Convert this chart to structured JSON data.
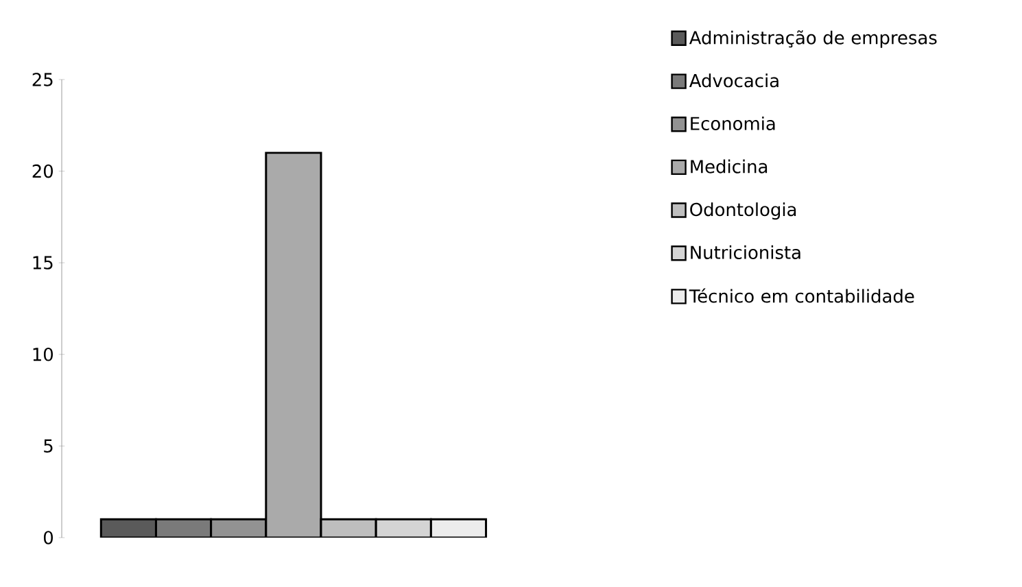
{
  "chart_data": {
    "type": "bar",
    "categories": [
      null
    ],
    "series": [
      {
        "name": "Administração de empresas",
        "color": "#5a5a5a",
        "values": [
          1
        ]
      },
      {
        "name": "Advocacia",
        "color": "#7a7a7a",
        "values": [
          1
        ]
      },
      {
        "name": "Economia",
        "color": "#929292",
        "values": [
          1
        ]
      },
      {
        "name": "Medicina",
        "color": "#aaaaaa",
        "values": [
          21
        ]
      },
      {
        "name": "Odontologia",
        "color": "#bebebe",
        "values": [
          1
        ]
      },
      {
        "name": "Nutricionista",
        "color": "#d4d4d4",
        "values": [
          1
        ]
      },
      {
        "name": "Técnico  em contabilidade",
        "color": "#ececec",
        "values": [
          1
        ]
      }
    ],
    "ylim": [
      0,
      25
    ],
    "yticks": [
      0,
      5,
      10,
      15,
      20,
      25
    ],
    "legend": "right",
    "grid": false
  }
}
